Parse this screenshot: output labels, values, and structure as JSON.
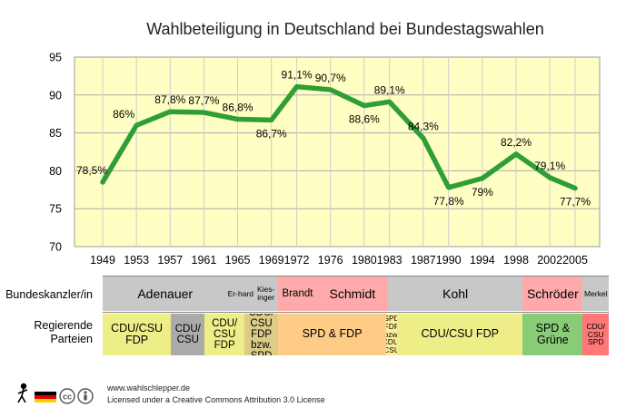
{
  "chart_data": {
    "type": "line",
    "title": "Wahlbeteiligung in Deutschland bei Bundestagswahlen",
    "xlabel": "",
    "ylabel": "",
    "ylim": [
      70,
      95
    ],
    "yticks": [
      "70",
      "75",
      "80",
      "85",
      "90",
      "95"
    ],
    "grid": true,
    "line_color": "#2e9e35",
    "plot_background": "#ffffc4",
    "series": [
      {
        "x": [
          1949,
          1953,
          1957,
          1961,
          1965,
          1969,
          1972,
          1976,
          1980,
          1983,
          1987,
          1990,
          1994,
          1998,
          2002,
          2005
        ],
        "values": [
          78.5,
          86.0,
          87.8,
          87.7,
          86.8,
          86.7,
          91.1,
          90.7,
          88.6,
          89.1,
          84.3,
          77.8,
          79.0,
          82.2,
          79.1,
          77.7
        ],
        "labels": [
          "78,5%",
          "86%",
          "87,8%",
          "87,7%",
          "86,8%",
          "86,7%",
          "91,1%",
          "90,7%",
          "88,6%",
          "89,1%",
          "84,3%",
          "77,8%",
          "79%",
          "82,2%",
          "79,1%",
          "77,7%"
        ]
      }
    ]
  },
  "rows": {
    "chancellors_label": "Bundeskanzler/in",
    "parties_label": "Regierende Parteien",
    "chancellors": [
      {
        "text": "Adenauer",
        "from": 1949.0,
        "to": 1963.8,
        "color": "#c8c8c8"
      },
      {
        "text": "Er-hard",
        "from": 1963.8,
        "to": 1966.9,
        "color": "#c8c8c8"
      },
      {
        "text": "Kies-inger",
        "from": 1966.9,
        "to": 1969.8,
        "color": "#c8c8c8"
      },
      {
        "text": "Brandt",
        "from": 1969.8,
        "to": 1974.4,
        "color": "#ffaaaa"
      },
      {
        "text": "Schmidt",
        "from": 1974.4,
        "to": 1982.8,
        "color": "#ffaaaa"
      },
      {
        "text": "Kohl",
        "from": 1982.8,
        "to": 1998.8,
        "color": "#c8c8c8"
      },
      {
        "text": "Schröder",
        "from": 1998.8,
        "to": 2005.9,
        "color": "#ffaaaa"
      },
      {
        "text": "Merkel",
        "from": 2005.9,
        "to": 2009.0,
        "color": "#c8c8c8"
      }
    ],
    "parties": [
      {
        "text": "CDU/CSU FDP",
        "from": 1949.0,
        "to": 1957.1,
        "color": "#eeee88"
      },
      {
        "text": "CDU/ CSU",
        "from": 1957.1,
        "to": 1961.1,
        "color": "#aaaaaa"
      },
      {
        "text": "CDU/ CSU FDP",
        "from": 1961.1,
        "to": 1965.8,
        "color": "#eeee88"
      },
      {
        "text": "CDU/ CSU FDP bzw. SPD",
        "from": 1965.8,
        "to": 1969.8,
        "color": "#ddcc88"
      },
      {
        "text": "SPD & FDP",
        "from": 1969.8,
        "to": 1982.6,
        "color": "#ffcc88"
      },
      {
        "text": "SPD FDP bzw. CDU/ CSU",
        "from": 1982.6,
        "to": 1983.9,
        "color": "#ffee99"
      },
      {
        "text": "CDU/CSU FDP",
        "from": 1983.9,
        "to": 1998.8,
        "color": "#eeee88"
      },
      {
        "text": "SPD & Grüne",
        "from": 1998.8,
        "to": 2005.9,
        "color": "#88cc77"
      },
      {
        "text": "CDU/ CSU SPD",
        "from": 2005.9,
        "to": 2009.0,
        "color": "#ff7777"
      }
    ]
  },
  "footer": {
    "line1": "www.wahlschlepper.de",
    "line2": "Licensed under a Creative Commons Attribution 3.0 License"
  }
}
